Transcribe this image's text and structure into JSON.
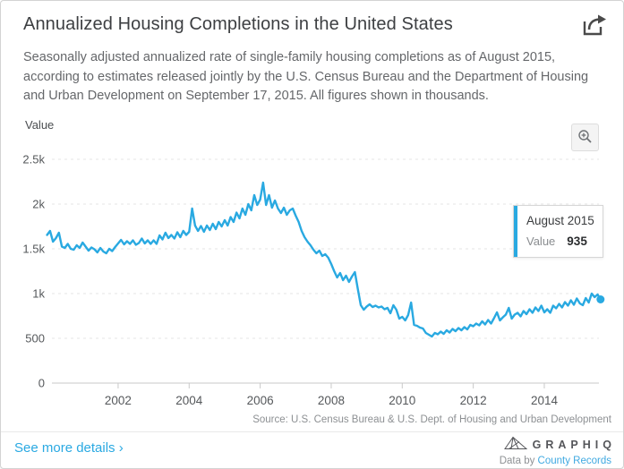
{
  "header": {
    "title": "Annualized Housing Completions in the United States"
  },
  "description": "Seasonally adjusted annualized rate of single-family housing completions as of August 2015, according to estimates released jointly by the U.S. Census Bureau and the Department of Housing and Urban Development on September 17, 2015. All figures shown in thousands.",
  "chart": {
    "y_axis_title": "Value",
    "y_ticks": [
      {
        "value": 2500,
        "label": "2.5k"
      },
      {
        "value": 2000,
        "label": "2k"
      },
      {
        "value": 1500,
        "label": "1.5k"
      },
      {
        "value": 1000,
        "label": "1k"
      },
      {
        "value": 500,
        "label": "500"
      },
      {
        "value": 0,
        "label": "0"
      }
    ],
    "x_ticks": [
      {
        "year": 2002,
        "label": "2002"
      },
      {
        "year": 2004,
        "label": "2004"
      },
      {
        "year": 2006,
        "label": "2006"
      },
      {
        "year": 2008,
        "label": "2008"
      },
      {
        "year": 2010,
        "label": "2010"
      },
      {
        "year": 2012,
        "label": "2012"
      },
      {
        "year": 2014,
        "label": "2014"
      }
    ],
    "line_color": "#29a9e1",
    "grid_color": "#e4e4e4",
    "axis_color": "#c9c9c9",
    "tick_label_color": "#55585b"
  },
  "tooltip": {
    "date": "August 2015",
    "label": "Value",
    "value": "935",
    "accent_color": "#29a9e1"
  },
  "icons": {
    "share": "share-icon",
    "zoom": "magnifier-plus-icon",
    "brand_logo": "graphiq-logo-icon"
  },
  "footer": {
    "source": "Source: U.S. Census Bureau & U.S. Dept. of Housing and Urban Development",
    "details_link": "See more details ›",
    "brand_name": "GRAPHIQ",
    "attribution_prefix": "Data by ",
    "attribution_link": "County Records"
  },
  "chart_data": {
    "type": "line",
    "title": "Annualized Housing Completions in the United States",
    "ylabel": "Value",
    "unit": "thousands, seasonally adjusted annualized rate",
    "frequency": "monthly",
    "x_start": "2000-01",
    "x_end": "2015-08",
    "xlim": [
      2000.0,
      2015.75
    ],
    "ylim": [
      0,
      2750
    ],
    "grid": "dashed-horizontal",
    "legend": "none",
    "highlighted_point": {
      "x": "2015-08",
      "y": 935
    },
    "values": [
      1655,
      1700,
      1580,
      1620,
      1680,
      1525,
      1510,
      1555,
      1500,
      1490,
      1540,
      1510,
      1570,
      1525,
      1480,
      1515,
      1495,
      1460,
      1510,
      1470,
      1450,
      1500,
      1475,
      1520,
      1560,
      1600,
      1550,
      1585,
      1555,
      1595,
      1545,
      1565,
      1615,
      1560,
      1595,
      1555,
      1595,
      1555,
      1650,
      1605,
      1680,
      1620,
      1655,
      1615,
      1685,
      1630,
      1700,
      1655,
      1690,
      1950,
      1760,
      1700,
      1755,
      1690,
      1760,
      1710,
      1780,
      1720,
      1800,
      1750,
      1820,
      1760,
      1855,
      1800,
      1905,
      1840,
      1950,
      1880,
      2000,
      1930,
      2100,
      1990,
      2050,
      2240,
      1990,
      2100,
      1960,
      2040,
      1950,
      1900,
      1960,
      1880,
      1930,
      1950,
      1870,
      1800,
      1700,
      1630,
      1580,
      1540,
      1490,
      1450,
      1480,
      1420,
      1440,
      1400,
      1330,
      1250,
      1180,
      1230,
      1150,
      1200,
      1130,
      1190,
      1240,
      1050,
      870,
      820,
      855,
      880,
      850,
      865,
      845,
      855,
      825,
      840,
      780,
      870,
      820,
      720,
      740,
      700,
      760,
      900,
      650,
      640,
      620,
      610,
      560,
      540,
      520,
      560,
      545,
      575,
      550,
      590,
      565,
      605,
      580,
      615,
      590,
      625,
      600,
      650,
      635,
      665,
      645,
      690,
      655,
      705,
      665,
      725,
      790,
      700,
      735,
      765,
      840,
      720,
      765,
      785,
      745,
      805,
      770,
      825,
      785,
      845,
      805,
      865,
      790,
      825,
      785,
      865,
      835,
      885,
      845,
      905,
      865,
      925,
      875,
      945,
      890,
      870,
      950,
      900,
      1000,
      960,
      990,
      935
    ]
  }
}
